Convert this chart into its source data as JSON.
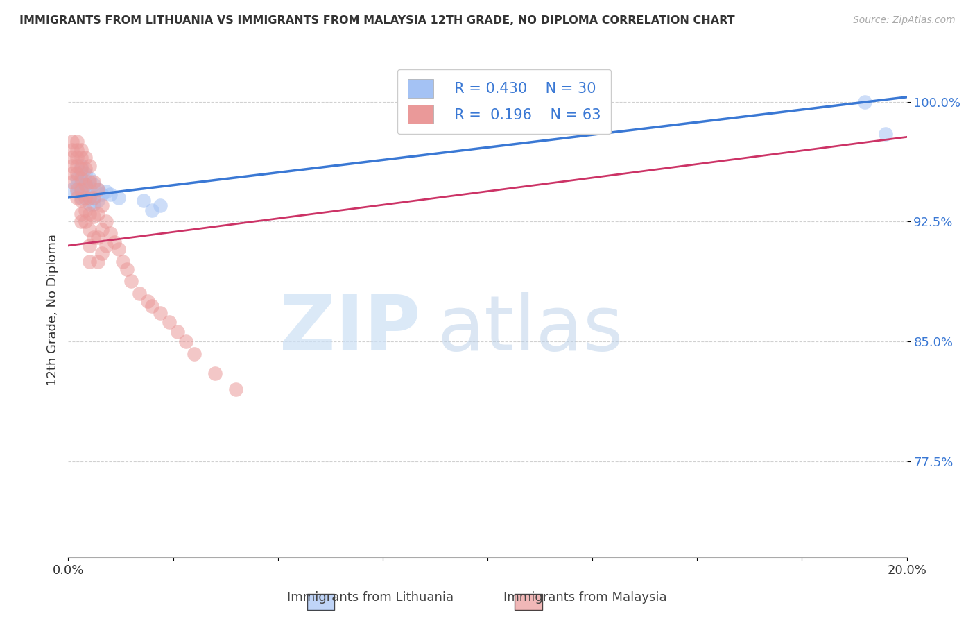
{
  "title": "IMMIGRANTS FROM LITHUANIA VS IMMIGRANTS FROM MALAYSIA 12TH GRADE, NO DIPLOMA CORRELATION CHART",
  "source": "Source: ZipAtlas.com",
  "ylabel": "12th Grade, No Diploma",
  "xmin": 0.0,
  "xmax": 0.2,
  "ymin": 0.715,
  "ymax": 1.025,
  "lithuania_color": "#a4c2f4",
  "malaysia_color": "#ea9999",
  "lithuania_line_color": "#3a78d4",
  "malaysia_line_color": "#cc3366",
  "legend_R_lithuania": "R = 0.430",
  "legend_N_lithuania": "N = 30",
  "legend_R_malaysia": "R =  0.196",
  "legend_N_malaysia": "N = 63",
  "lithuania_x": [
    0.001,
    0.002,
    0.002,
    0.002,
    0.003,
    0.003,
    0.003,
    0.003,
    0.003,
    0.004,
    0.004,
    0.004,
    0.005,
    0.005,
    0.005,
    0.005,
    0.006,
    0.006,
    0.006,
    0.007,
    0.007,
    0.008,
    0.009,
    0.01,
    0.012,
    0.018,
    0.02,
    0.022,
    0.19,
    0.195
  ],
  "lithuania_y": [
    0.945,
    0.952,
    0.948,
    0.944,
    0.96,
    0.956,
    0.95,
    0.944,
    0.94,
    0.955,
    0.948,
    0.942,
    0.952,
    0.946,
    0.94,
    0.936,
    0.948,
    0.94,
    0.936,
    0.945,
    0.938,
    0.942,
    0.944,
    0.942,
    0.94,
    0.938,
    0.932,
    0.935,
    1.0,
    0.98
  ],
  "malaysia_x": [
    0.001,
    0.001,
    0.001,
    0.001,
    0.001,
    0.001,
    0.002,
    0.002,
    0.002,
    0.002,
    0.002,
    0.002,
    0.002,
    0.003,
    0.003,
    0.003,
    0.003,
    0.003,
    0.003,
    0.003,
    0.003,
    0.004,
    0.004,
    0.004,
    0.004,
    0.004,
    0.004,
    0.005,
    0.005,
    0.005,
    0.005,
    0.005,
    0.005,
    0.005,
    0.006,
    0.006,
    0.006,
    0.006,
    0.007,
    0.007,
    0.007,
    0.007,
    0.008,
    0.008,
    0.008,
    0.009,
    0.009,
    0.01,
    0.011,
    0.012,
    0.013,
    0.014,
    0.015,
    0.017,
    0.019,
    0.02,
    0.022,
    0.024,
    0.026,
    0.028,
    0.03,
    0.035,
    0.04
  ],
  "malaysia_y": [
    0.975,
    0.97,
    0.965,
    0.96,
    0.955,
    0.95,
    0.975,
    0.97,
    0.965,
    0.96,
    0.955,
    0.945,
    0.94,
    0.97,
    0.965,
    0.958,
    0.952,
    0.945,
    0.938,
    0.93,
    0.925,
    0.965,
    0.958,
    0.948,
    0.94,
    0.932,
    0.925,
    0.96,
    0.95,
    0.94,
    0.93,
    0.92,
    0.91,
    0.9,
    0.95,
    0.94,
    0.928,
    0.915,
    0.945,
    0.93,
    0.915,
    0.9,
    0.935,
    0.92,
    0.905,
    0.925,
    0.91,
    0.918,
    0.912,
    0.908,
    0.9,
    0.895,
    0.888,
    0.88,
    0.875,
    0.872,
    0.868,
    0.862,
    0.856,
    0.85,
    0.842,
    0.83,
    0.82
  ]
}
